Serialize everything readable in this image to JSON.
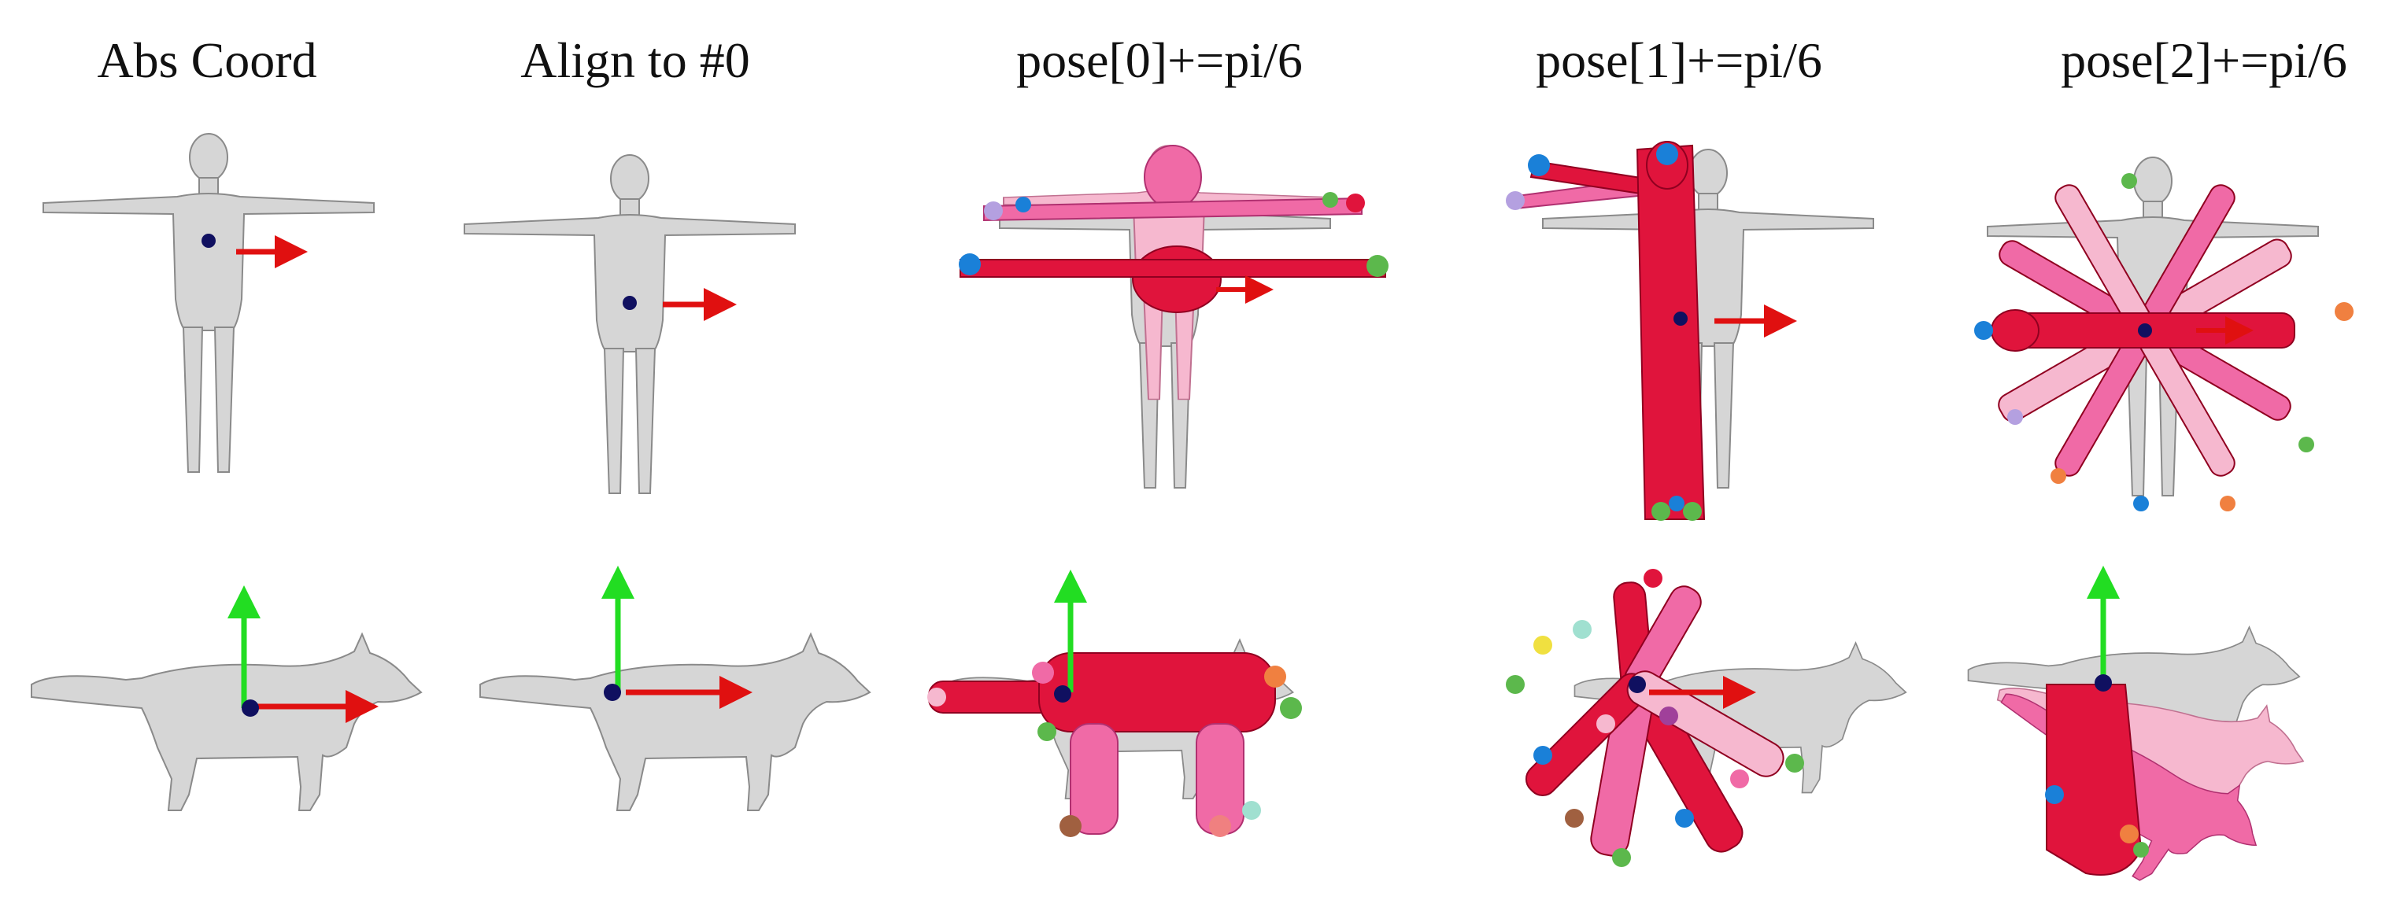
{
  "columns": [
    {
      "title": "Abs Coord"
    },
    {
      "title": "Align to #0"
    },
    {
      "title": "pose[0]+=pi/6"
    },
    {
      "title": "pose[1]+=pi/6"
    },
    {
      "title": "pose[2]+=pi/6"
    }
  ],
  "colors": {
    "mesh_gray": "#d6d6d6",
    "mesh_outline": "#8a8a8a",
    "pose_red": "#e0143c",
    "pose_pink": "#f06aa6",
    "pose_light_pink": "#f6b8cf",
    "axis_x": "#e01010",
    "axis_y": "#22dd22",
    "joint_marker": "#101060"
  }
}
